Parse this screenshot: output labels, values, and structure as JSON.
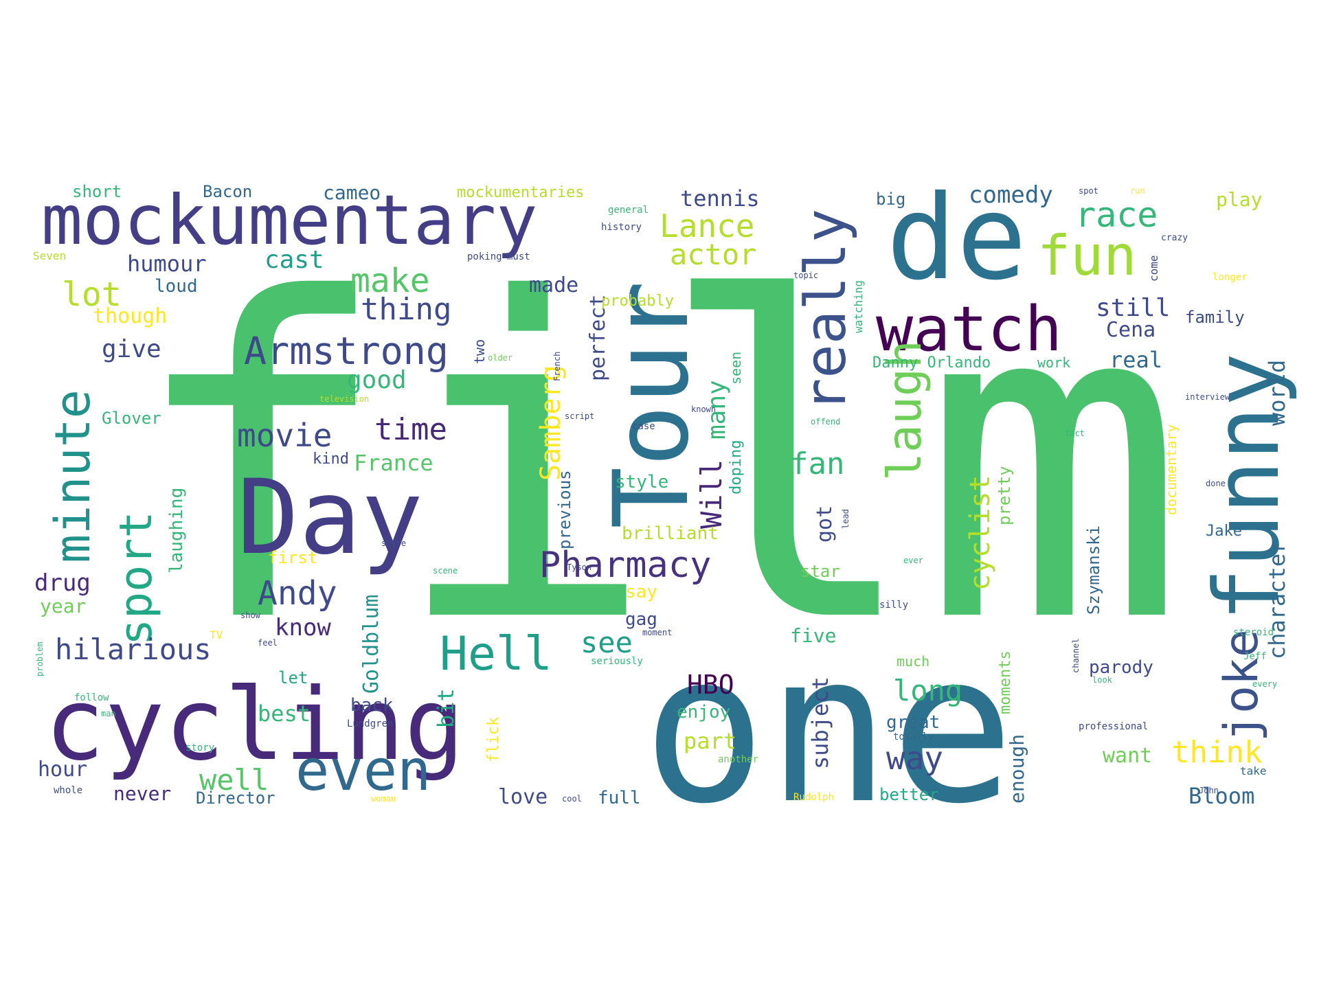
{
  "palette": {
    "deep_purple": "#440154",
    "indigo": "#482878",
    "slate": "#3e4a89",
    "steel": "#31688e",
    "teal": "#26828e",
    "sea": "#1f9e89",
    "green": "#35b779",
    "lime": "#6ece58",
    "chartreuse": "#b5de2b",
    "yellow": "#fde725"
  },
  "words": [
    {
      "text": "film",
      "color": "#4ac16d"
    },
    {
      "text": "one",
      "color": "#2c728e"
    },
    {
      "text": "de",
      "color": "#2c728e"
    },
    {
      "text": "cycling",
      "color": "#472a7a"
    },
    {
      "text": "Day",
      "color": "#433e85"
    },
    {
      "text": "Tour",
      "color": "#2c728e"
    },
    {
      "text": "funny",
      "color": "#2c728e"
    },
    {
      "text": "mockumentary",
      "color": "#433e85"
    },
    {
      "text": "watch",
      "color": "#440154"
    },
    {
      "text": "really",
      "color": "#3b528b"
    },
    {
      "text": "joke",
      "color": "#3b528b"
    },
    {
      "text": "even",
      "color": "#31688e"
    },
    {
      "text": "laugh",
      "color": "#6ece58"
    },
    {
      "text": "fun",
      "color": "#a0da39"
    },
    {
      "text": "Armstrong",
      "color": "#3e4a89"
    },
    {
      "text": "sport",
      "color": "#22a884"
    },
    {
      "text": "minute",
      "color": "#21918c"
    },
    {
      "text": "Hell",
      "color": "#1f9e89"
    },
    {
      "text": "Pharmacy",
      "color": "#46327e"
    },
    {
      "text": "race",
      "color": "#35b779"
    },
    {
      "text": "Lance",
      "color": "#b5de2b"
    },
    {
      "text": "actor",
      "color": "#b5de2b"
    },
    {
      "text": "make",
      "color": "#54c568"
    },
    {
      "text": "thing",
      "color": "#3e4a89"
    },
    {
      "text": "Samberg",
      "color": "#fde725"
    },
    {
      "text": "movie",
      "color": "#3e4a89"
    },
    {
      "text": "time",
      "color": "#482878"
    },
    {
      "text": "Andy",
      "color": "#3e4a89"
    },
    {
      "text": "Will",
      "color": "#482878"
    },
    {
      "text": "many",
      "color": "#35b779"
    },
    {
      "text": "cyclist",
      "color": "#b5de2b"
    },
    {
      "text": "character",
      "color": "#31688e"
    },
    {
      "text": "world",
      "color": "#31688e"
    },
    {
      "text": "hilarious",
      "color": "#3e4a89"
    },
    {
      "text": "lot",
      "color": "#b5de2b"
    },
    {
      "text": "fan",
      "color": "#35b779"
    },
    {
      "text": "comedy",
      "color": "#31688e"
    },
    {
      "text": "well",
      "color": "#54c568"
    },
    {
      "text": "way",
      "color": "#3e4a89"
    },
    {
      "text": "think",
      "color": "#fde725"
    },
    {
      "text": "long",
      "color": "#35b779"
    },
    {
      "text": "HBO",
      "color": "#440154"
    },
    {
      "text": "see",
      "color": "#1f9e89"
    },
    {
      "text": "know",
      "color": "#472a7a"
    },
    {
      "text": "humour",
      "color": "#3e4a89"
    },
    {
      "text": "cast",
      "color": "#1f9e89"
    },
    {
      "text": "give",
      "color": "#3e4a89"
    },
    {
      "text": "good",
      "color": "#35b779"
    },
    {
      "text": "France",
      "color": "#54c568"
    },
    {
      "text": "tennis",
      "color": "#3e4a89"
    },
    {
      "text": "cameo",
      "color": "#31688e"
    },
    {
      "text": "still",
      "color": "#3e4a89"
    },
    {
      "text": "Cena",
      "color": "#3e4a89"
    },
    {
      "text": "real",
      "color": "#31688e"
    },
    {
      "text": "play",
      "color": "#b5de2b"
    },
    {
      "text": "made",
      "color": "#3e4a89"
    },
    {
      "text": "perfect",
      "color": "#3e4a89"
    },
    {
      "text": "subject",
      "color": "#3e4a89"
    },
    {
      "text": "Goldblum",
      "color": "#21918c"
    },
    {
      "text": "bit",
      "color": "#22a884"
    },
    {
      "text": "best",
      "color": "#35b779"
    },
    {
      "text": "back",
      "color": "#3e4a89"
    },
    {
      "text": "let",
      "color": "#22a884"
    },
    {
      "text": "drug",
      "color": "#472a7a"
    },
    {
      "text": "year",
      "color": "#6ece58"
    },
    {
      "text": "hour",
      "color": "#3e4a89"
    },
    {
      "text": "never",
      "color": "#472a7a"
    },
    {
      "text": "Director",
      "color": "#31688e"
    },
    {
      "text": "love",
      "color": "#3e4a89"
    },
    {
      "text": "full",
      "color": "#31688e"
    },
    {
      "text": "part",
      "color": "#b5de2b"
    },
    {
      "text": "enjoy",
      "color": "#35b779"
    },
    {
      "text": "five",
      "color": "#35b779"
    },
    {
      "text": "great",
      "color": "#31688e"
    },
    {
      "text": "want",
      "color": "#6ece58"
    },
    {
      "text": "better",
      "color": "#22a884"
    },
    {
      "text": "Bloom",
      "color": "#31688e"
    },
    {
      "text": "parody",
      "color": "#3e4a89"
    },
    {
      "text": "enough",
      "color": "#31688e"
    },
    {
      "text": "moments",
      "color": "#6ece58"
    },
    {
      "text": "Szymanski",
      "color": "#31688e"
    },
    {
      "text": "pretty",
      "color": "#6ece58"
    },
    {
      "text": "got",
      "color": "#3e4a89"
    },
    {
      "text": "star",
      "color": "#6ece58"
    },
    {
      "text": "Danny Orlando",
      "color": "#35b779"
    },
    {
      "text": "work",
      "color": "#35b779"
    },
    {
      "text": "brilliant",
      "color": "#b5de2b"
    },
    {
      "text": "style",
      "color": "#35b779"
    },
    {
      "text": "say",
      "color": "#fde725"
    },
    {
      "text": "gag",
      "color": "#3e4a89"
    },
    {
      "text": "doping",
      "color": "#22a884"
    },
    {
      "text": "seen",
      "color": "#35b779"
    },
    {
      "text": "previous",
      "color": "#31688e"
    },
    {
      "text": "laughing",
      "color": "#35b779"
    },
    {
      "text": "first",
      "color": "#fde725"
    },
    {
      "text": "though",
      "color": "#fde725"
    },
    {
      "text": "loud",
      "color": "#31688e"
    },
    {
      "text": "Glover",
      "color": "#35b779"
    },
    {
      "text": "kind",
      "color": "#3e4a89"
    },
    {
      "text": "short",
      "color": "#35b779"
    },
    {
      "text": "Bacon",
      "color": "#31688e"
    },
    {
      "text": "mockumentaries",
      "color": "#b5de2b"
    },
    {
      "text": "big",
      "color": "#31688e"
    },
    {
      "text": "family",
      "color": "#3e4a89"
    },
    {
      "text": "Jake",
      "color": "#31688e"
    },
    {
      "text": "documentary",
      "color": "#fde725"
    },
    {
      "text": "probably",
      "color": "#b5de2b"
    },
    {
      "text": "watching",
      "color": "#35b779"
    },
    {
      "text": "flick",
      "color": "#fde725"
    },
    {
      "text": "much",
      "color": "#6ece58"
    },
    {
      "text": "two",
      "color": "#3e4a89"
    },
    {
      "text": "come",
      "color": "#3e4a89"
    },
    {
      "text": "TV",
      "color": "#fde725"
    },
    {
      "text": "Seven",
      "color": "#b5de2b"
    },
    {
      "text": "general",
      "color": "#35b779"
    },
    {
      "text": "history",
      "color": "#3e4a89"
    },
    {
      "text": "poking",
      "color": "#3e4a89"
    },
    {
      "text": "must",
      "color": "#3e4a89"
    },
    {
      "text": "topic",
      "color": "#3e4a89"
    },
    {
      "text": "French",
      "color": "#3e4a89"
    },
    {
      "text": "script",
      "color": "#3e4a89"
    },
    {
      "text": "older",
      "color": "#6ece58"
    },
    {
      "text": "offend",
      "color": "#35b779"
    },
    {
      "text": "Lundgren",
      "color": "#3e4a89"
    },
    {
      "text": "seriously",
      "color": "#35b779"
    },
    {
      "text": "professional",
      "color": "#3e4a89"
    },
    {
      "text": "take",
      "color": "#31688e"
    },
    {
      "text": "steroid",
      "color": "#35b779"
    },
    {
      "text": "Jeff",
      "color": "#35b779"
    },
    {
      "text": "another",
      "color": "#6ece58"
    },
    {
      "text": "Rudolph",
      "color": "#fde725"
    },
    {
      "text": "totally",
      "color": "#31688e"
    },
    {
      "text": "silly",
      "color": "#3e4a89"
    },
    {
      "text": "case",
      "color": "#3e4a89"
    },
    {
      "text": "crazy",
      "color": "#3e4a89"
    },
    {
      "text": "longer",
      "color": "#fde725"
    },
    {
      "text": "interview",
      "color": "#3e4a89"
    },
    {
      "text": "done",
      "color": "#3e4a89"
    },
    {
      "text": "channel",
      "color": "#3e4a89"
    },
    {
      "text": "television",
      "color": "#b5de2b"
    },
    {
      "text": "share",
      "color": "#3e4a89"
    },
    {
      "text": "woman",
      "color": "#fde725"
    },
    {
      "text": "whole",
      "color": "#3e4a89"
    },
    {
      "text": "follow",
      "color": "#35b779"
    },
    {
      "text": "story",
      "color": "#35b779"
    },
    {
      "text": "problem",
      "color": "#35b779"
    },
    {
      "text": "John",
      "color": "#3e4a89"
    },
    {
      "text": "cool",
      "color": "#3e4a89"
    },
    {
      "text": "scene",
      "color": "#35b779"
    },
    {
      "text": "lead",
      "color": "#3e4a89"
    },
    {
      "text": "every",
      "color": "#35b779"
    },
    {
      "text": "look",
      "color": "#35b779"
    },
    {
      "text": "ever",
      "color": "#35b779"
    },
    {
      "text": "moment",
      "color": "#3e4a89"
    },
    {
      "text": "feel",
      "color": "#3e4a89"
    },
    {
      "text": "Tyson",
      "color": "#3e4a89"
    },
    {
      "text": "known",
      "color": "#3e4a89"
    },
    {
      "text": "man",
      "color": "#35b779"
    },
    {
      "text": "show",
      "color": "#3e4a89"
    },
    {
      "text": "fact",
      "color": "#35b779"
    },
    {
      "text": "spot",
      "color": "#3e4a89"
    },
    {
      "text": "run",
      "color": "#fde725"
    }
  ]
}
